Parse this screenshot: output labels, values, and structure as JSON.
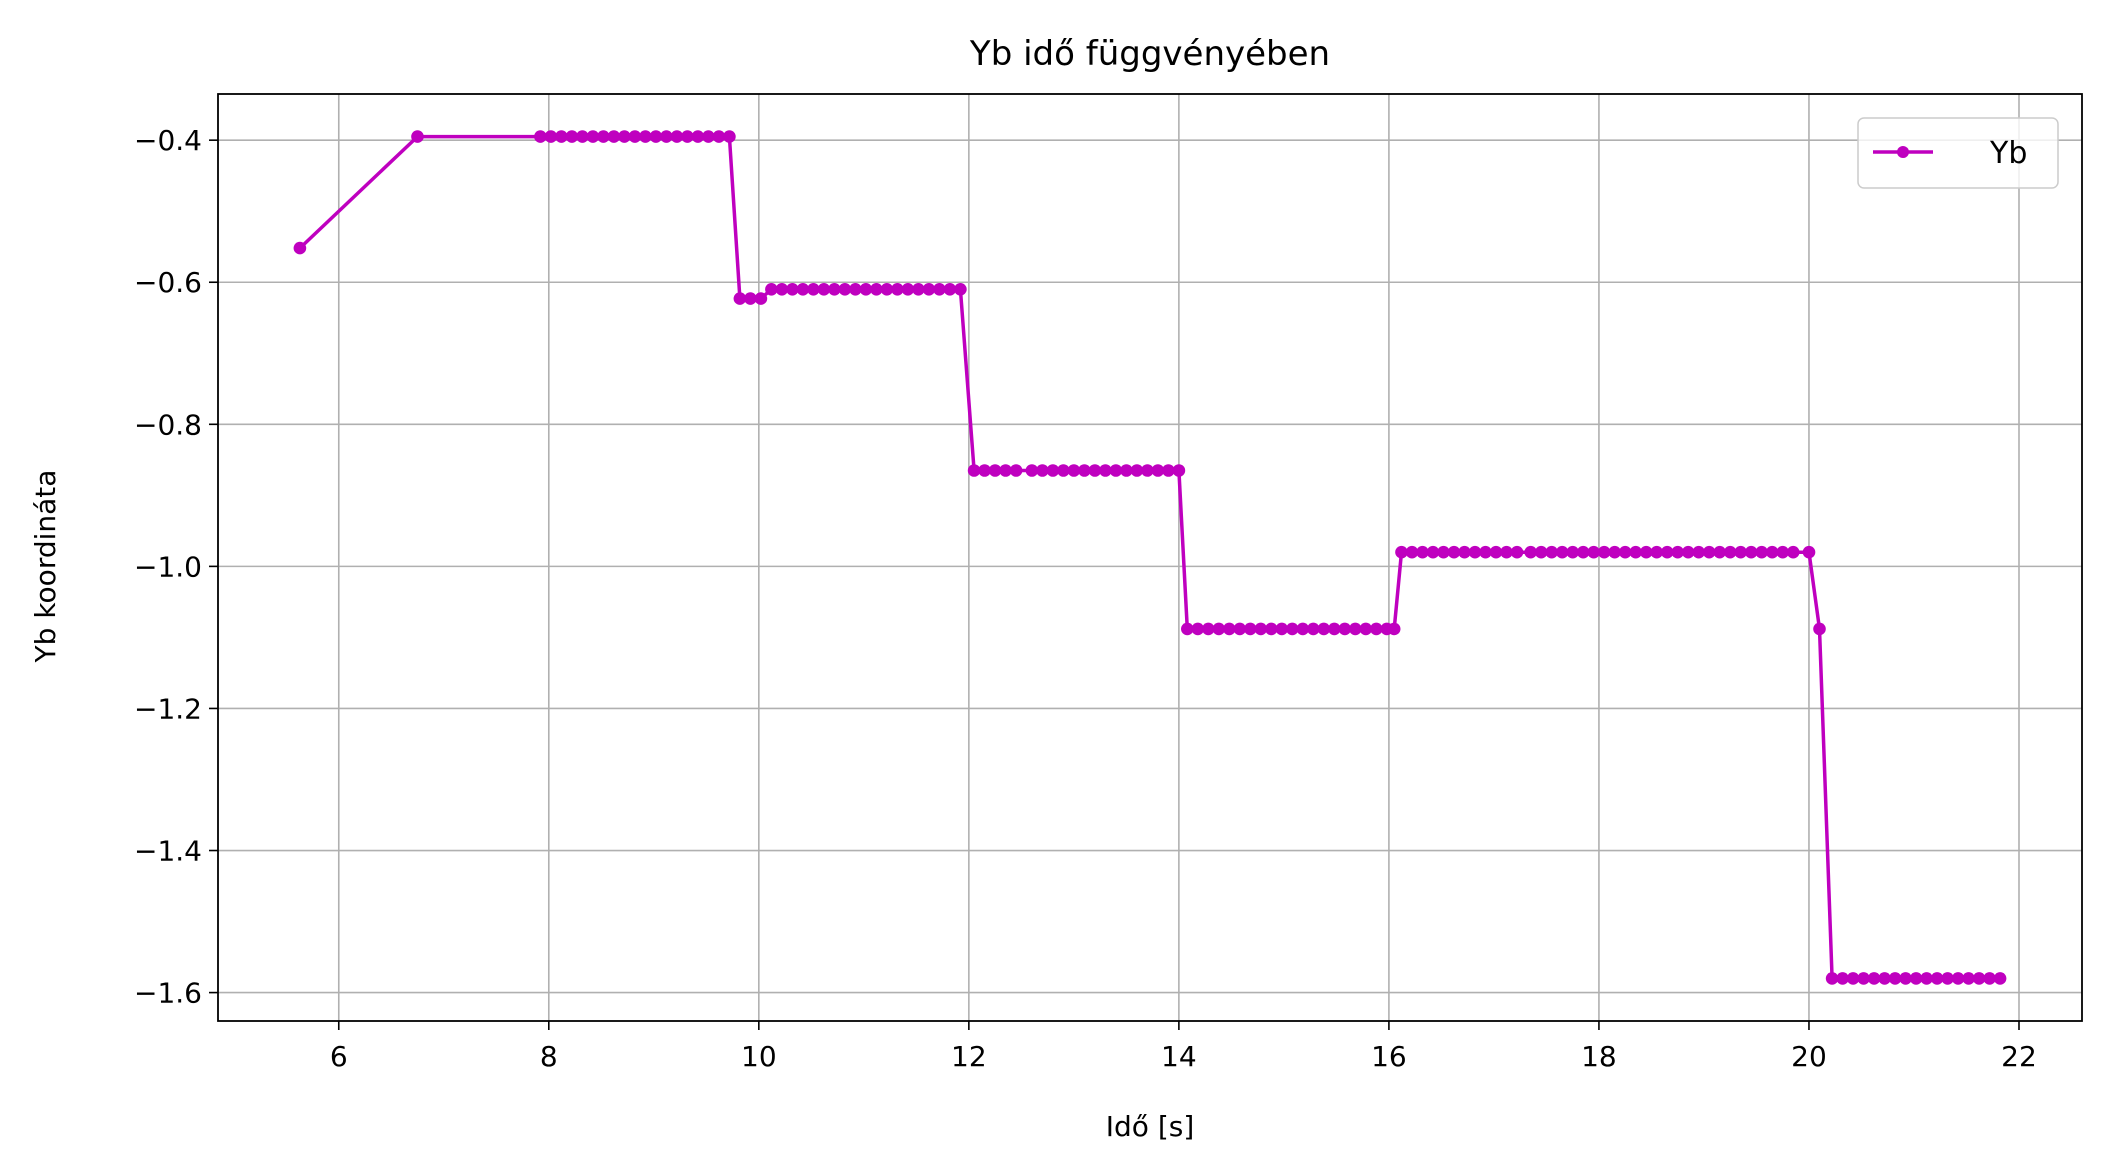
{
  "chart_data": {
    "type": "line",
    "title": "Yb idő függvényében",
    "xlabel": "Idő [s]",
    "ylabel": "Yb koordináta",
    "xlim": [
      4.85,
      22.6
    ],
    "ylim": [
      -1.64,
      -0.335
    ],
    "xticks": [
      6,
      8,
      10,
      12,
      14,
      16,
      18,
      20,
      22
    ],
    "yticks": [
      -0.4,
      -0.6,
      -0.8,
      -1.0,
      -1.2,
      -1.4,
      -1.6
    ],
    "xtick_labels": [
      "6",
      "8",
      "10",
      "12",
      "14",
      "16",
      "18",
      "20",
      "22"
    ],
    "ytick_labels": [
      "−0.4",
      "−0.6",
      "−0.8",
      "−1.0",
      "−1.2",
      "−1.4",
      "−1.6"
    ],
    "grid": true,
    "legend_position": "top-right",
    "series": [
      {
        "name": "Yb",
        "color": "#bf00bf",
        "marker": "circle",
        "points": [
          [
            5.63,
            -0.552
          ],
          [
            6.75,
            -0.395
          ],
          [
            7.92,
            -0.395
          ],
          [
            8.02,
            -0.395
          ],
          [
            8.12,
            -0.395
          ],
          [
            8.22,
            -0.395
          ],
          [
            8.32,
            -0.395
          ],
          [
            8.42,
            -0.395
          ],
          [
            8.52,
            -0.395
          ],
          [
            8.62,
            -0.395
          ],
          [
            8.72,
            -0.395
          ],
          [
            8.82,
            -0.395
          ],
          [
            8.92,
            -0.395
          ],
          [
            9.02,
            -0.395
          ],
          [
            9.12,
            -0.395
          ],
          [
            9.22,
            -0.395
          ],
          [
            9.32,
            -0.395
          ],
          [
            9.42,
            -0.395
          ],
          [
            9.52,
            -0.395
          ],
          [
            9.62,
            -0.395
          ],
          [
            9.72,
            -0.395
          ],
          [
            9.82,
            -0.623
          ],
          [
            9.92,
            -0.623
          ],
          [
            10.02,
            -0.623
          ],
          [
            10.12,
            -0.61
          ],
          [
            10.22,
            -0.61
          ],
          [
            10.32,
            -0.61
          ],
          [
            10.42,
            -0.61
          ],
          [
            10.52,
            -0.61
          ],
          [
            10.62,
            -0.61
          ],
          [
            10.72,
            -0.61
          ],
          [
            10.82,
            -0.61
          ],
          [
            10.92,
            -0.61
          ],
          [
            11.02,
            -0.61
          ],
          [
            11.12,
            -0.61
          ],
          [
            11.22,
            -0.61
          ],
          [
            11.32,
            -0.61
          ],
          [
            11.42,
            -0.61
          ],
          [
            11.52,
            -0.61
          ],
          [
            11.62,
            -0.61
          ],
          [
            11.72,
            -0.61
          ],
          [
            11.82,
            -0.61
          ],
          [
            11.92,
            -0.61
          ],
          [
            12.05,
            -0.865
          ],
          [
            12.15,
            -0.865
          ],
          [
            12.25,
            -0.865
          ],
          [
            12.35,
            -0.865
          ],
          [
            12.45,
            -0.865
          ],
          [
            12.6,
            -0.865
          ],
          [
            12.7,
            -0.865
          ],
          [
            12.8,
            -0.865
          ],
          [
            12.9,
            -0.865
          ],
          [
            13.0,
            -0.865
          ],
          [
            13.1,
            -0.865
          ],
          [
            13.2,
            -0.865
          ],
          [
            13.3,
            -0.865
          ],
          [
            13.4,
            -0.865
          ],
          [
            13.5,
            -0.865
          ],
          [
            13.6,
            -0.865
          ],
          [
            13.7,
            -0.865
          ],
          [
            13.8,
            -0.865
          ],
          [
            13.9,
            -0.865
          ],
          [
            14.0,
            -0.865
          ],
          [
            14.08,
            -1.088
          ],
          [
            14.18,
            -1.088
          ],
          [
            14.28,
            -1.088
          ],
          [
            14.38,
            -1.088
          ],
          [
            14.48,
            -1.088
          ],
          [
            14.58,
            -1.088
          ],
          [
            14.68,
            -1.088
          ],
          [
            14.78,
            -1.088
          ],
          [
            14.88,
            -1.088
          ],
          [
            14.98,
            -1.088
          ],
          [
            15.08,
            -1.088
          ],
          [
            15.18,
            -1.088
          ],
          [
            15.28,
            -1.088
          ],
          [
            15.38,
            -1.088
          ],
          [
            15.48,
            -1.088
          ],
          [
            15.58,
            -1.088
          ],
          [
            15.68,
            -1.088
          ],
          [
            15.78,
            -1.088
          ],
          [
            15.88,
            -1.088
          ],
          [
            15.98,
            -1.088
          ],
          [
            16.05,
            -1.088
          ],
          [
            16.12,
            -0.98
          ],
          [
            16.22,
            -0.98
          ],
          [
            16.32,
            -0.98
          ],
          [
            16.42,
            -0.98
          ],
          [
            16.52,
            -0.98
          ],
          [
            16.62,
            -0.98
          ],
          [
            16.72,
            -0.98
          ],
          [
            16.82,
            -0.98
          ],
          [
            16.92,
            -0.98
          ],
          [
            17.02,
            -0.98
          ],
          [
            17.12,
            -0.98
          ],
          [
            17.22,
            -0.98
          ],
          [
            17.35,
            -0.98
          ],
          [
            17.45,
            -0.98
          ],
          [
            17.55,
            -0.98
          ],
          [
            17.65,
            -0.98
          ],
          [
            17.75,
            -0.98
          ],
          [
            17.85,
            -0.98
          ],
          [
            17.95,
            -0.98
          ],
          [
            18.05,
            -0.98
          ],
          [
            18.15,
            -0.98
          ],
          [
            18.25,
            -0.98
          ],
          [
            18.35,
            -0.98
          ],
          [
            18.45,
            -0.98
          ],
          [
            18.55,
            -0.98
          ],
          [
            18.65,
            -0.98
          ],
          [
            18.75,
            -0.98
          ],
          [
            18.85,
            -0.98
          ],
          [
            18.95,
            -0.98
          ],
          [
            19.05,
            -0.98
          ],
          [
            19.15,
            -0.98
          ],
          [
            19.25,
            -0.98
          ],
          [
            19.35,
            -0.98
          ],
          [
            19.45,
            -0.98
          ],
          [
            19.55,
            -0.98
          ],
          [
            19.65,
            -0.98
          ],
          [
            19.75,
            -0.98
          ],
          [
            19.85,
            -0.98
          ],
          [
            20.0,
            -0.98
          ],
          [
            20.1,
            -1.088
          ],
          [
            20.22,
            -1.58
          ],
          [
            20.32,
            -1.58
          ],
          [
            20.42,
            -1.58
          ],
          [
            20.52,
            -1.58
          ],
          [
            20.62,
            -1.58
          ],
          [
            20.72,
            -1.58
          ],
          [
            20.82,
            -1.58
          ],
          [
            20.92,
            -1.58
          ],
          [
            21.02,
            -1.58
          ],
          [
            21.12,
            -1.58
          ],
          [
            21.22,
            -1.58
          ],
          [
            21.32,
            -1.58
          ],
          [
            21.42,
            -1.58
          ],
          [
            21.52,
            -1.58
          ],
          [
            21.62,
            -1.58
          ],
          [
            21.72,
            -1.58
          ],
          [
            21.82,
            -1.58
          ]
        ]
      }
    ]
  }
}
